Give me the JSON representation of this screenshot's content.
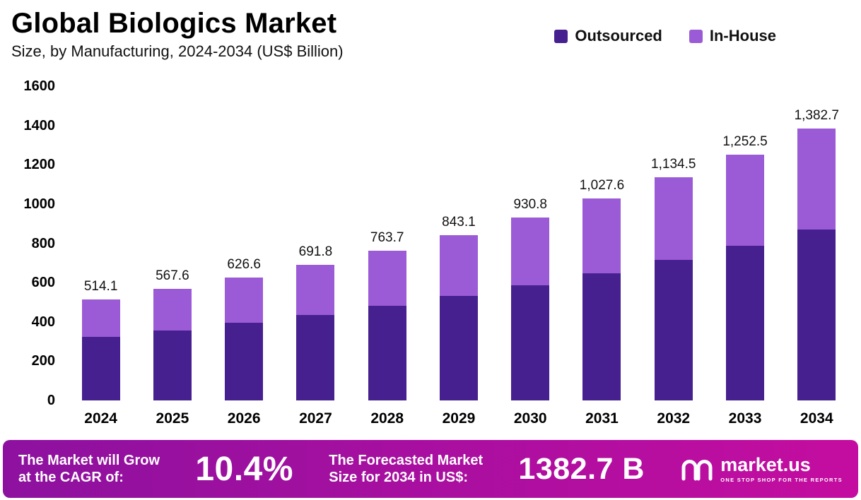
{
  "header": {
    "title": "Global Biologics Market",
    "subtitle": "Size, by Manufacturing, 2024-2034 (US$ Billion)"
  },
  "legend": [
    {
      "label": "Outsourced",
      "color": "#46208e"
    },
    {
      "label": "In-House",
      "color": "#9c5bd6"
    }
  ],
  "chart_data": {
    "type": "bar",
    "stacked": true,
    "title": "Global Biologics Market Size, by Manufacturing, 2024-2034 (US$ Billion)",
    "categories": [
      "2024",
      "2025",
      "2026",
      "2027",
      "2028",
      "2029",
      "2030",
      "2031",
      "2032",
      "2033",
      "2034"
    ],
    "series": [
      {
        "name": "Outsourced",
        "color": "#46208e",
        "values": [
          324.0,
          357.6,
          394.8,
          435.8,
          481.1,
          531.2,
          586.4,
          647.4,
          714.7,
          789.1,
          871.1
        ]
      },
      {
        "name": "In-House",
        "color": "#9c5bd6",
        "values": [
          190.1,
          210.0,
          231.8,
          256.0,
          282.6,
          311.9,
          344.4,
          380.2,
          419.8,
          463.4,
          511.6
        ]
      }
    ],
    "totals": [
      514.1,
      567.6,
      626.6,
      691.8,
      763.7,
      843.1,
      930.8,
      1027.6,
      1134.5,
      1252.5,
      1382.7
    ],
    "total_labels": [
      "514.1",
      "567.6",
      "626.6",
      "691.8",
      "763.7",
      "843.1",
      "930.8",
      "1,027.6",
      "1,134.5",
      "1,252.5",
      "1,382.7"
    ],
    "xlabel": "",
    "ylabel": "",
    "ylim": [
      0,
      1600
    ],
    "ytick_step": 200,
    "grid": false,
    "legend_position": "top-right"
  },
  "banner": {
    "cagr_label_line1": "The Market will Grow",
    "cagr_label_line2": "at the CAGR of:",
    "cagr_value": "10.4%",
    "forecast_label_line1": "The Forecasted Market",
    "forecast_label_line2": "Size for 2034 in US$:",
    "forecast_value": "1382.7 B",
    "brand": {
      "name": "market.us",
      "tagline": "ONE STOP SHOP FOR THE REPORTS"
    }
  },
  "colors": {
    "outsourced": "#46208e",
    "in_house": "#9c5bd6",
    "banner_gradient_start": "#8d119f",
    "banner_gradient_end": "#c40da0",
    "text": "#000000",
    "background": "#ffffff"
  }
}
